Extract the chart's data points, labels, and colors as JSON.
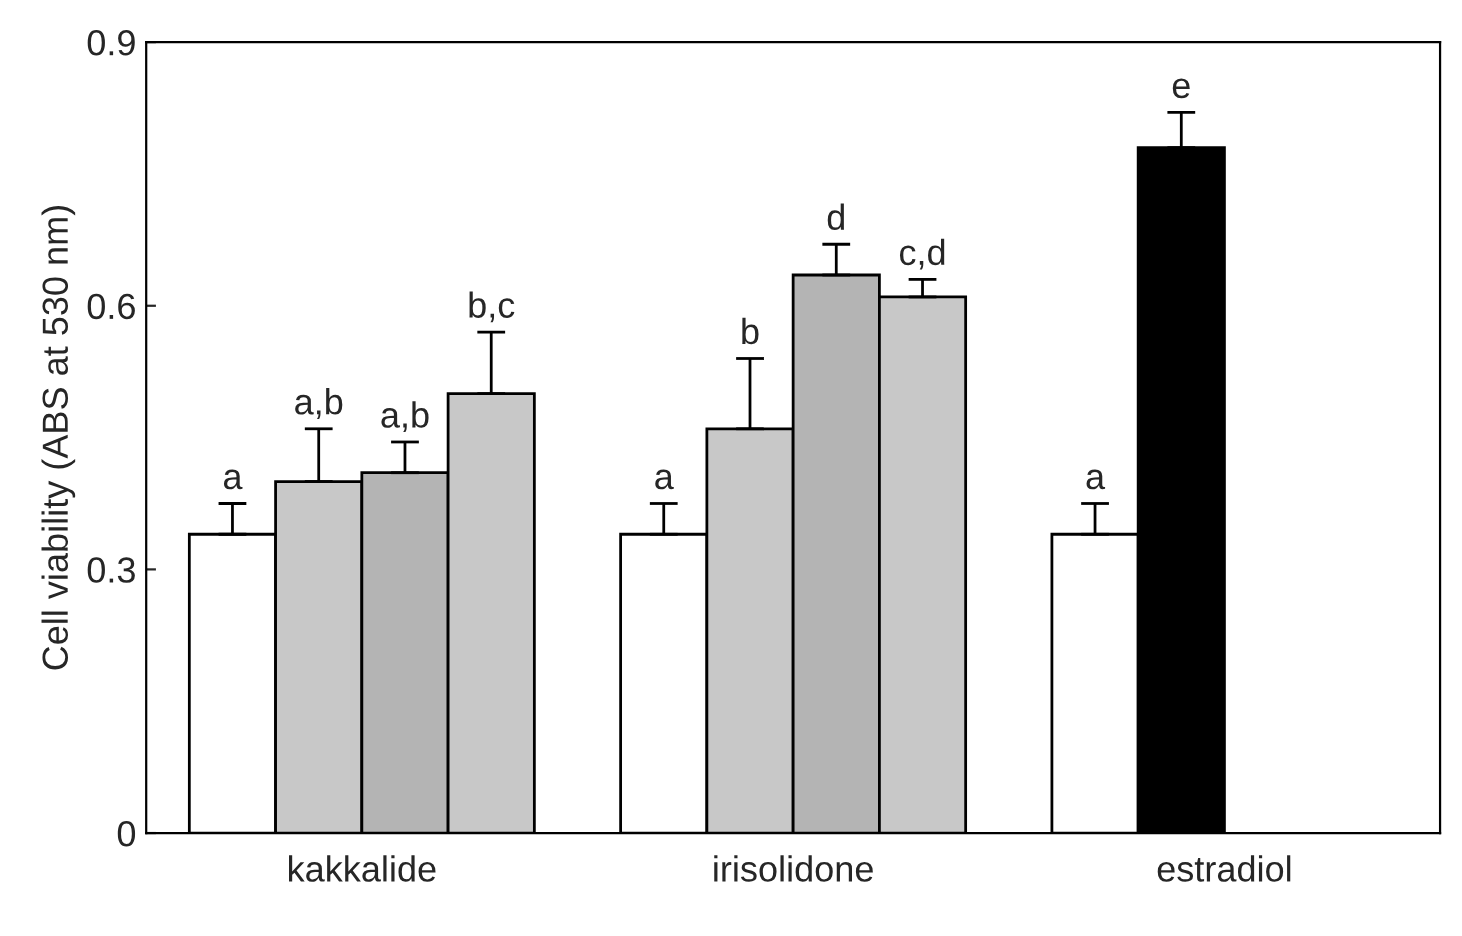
{
  "chart_data": {
    "type": "bar",
    "ylabel": "Cell viability (ABS at 530 nm)",
    "categories": [
      "kakkalide",
      "irisolidone",
      "estradiol"
    ],
    "series": [
      {
        "color": "#ffffff",
        "values": [
          0.34,
          0.34,
          0.34
        ],
        "errors": [
          0.035,
          0.035,
          0.035
        ],
        "value_labels": [
          "a",
          "a",
          "a"
        ]
      },
      {
        "colors": [
          "#c8c8c8",
          "#c8c8c8",
          "#000000"
        ],
        "values": [
          0.4,
          0.46,
          0.78
        ],
        "errors": [
          0.06,
          0.08,
          0.04
        ],
        "value_labels": [
          "a,b",
          "b",
          "e"
        ]
      },
      {
        "color": "#b4b4b4",
        "values": [
          0.41,
          0.635,
          null
        ],
        "errors": [
          0.035,
          0.035,
          null
        ],
        "value_labels": [
          "a,b",
          "d",
          null
        ]
      },
      {
        "color": "#c8c8c8",
        "values": [
          0.5,
          0.61,
          null
        ],
        "errors": [
          0.07,
          0.02,
          null
        ],
        "value_labels": [
          "b,c",
          "c,d",
          null
        ]
      }
    ],
    "ylim": [
      0,
      0.9
    ],
    "yticks": [
      0,
      0.3,
      0.6,
      0.9
    ],
    "grid": false,
    "legend": false
  }
}
